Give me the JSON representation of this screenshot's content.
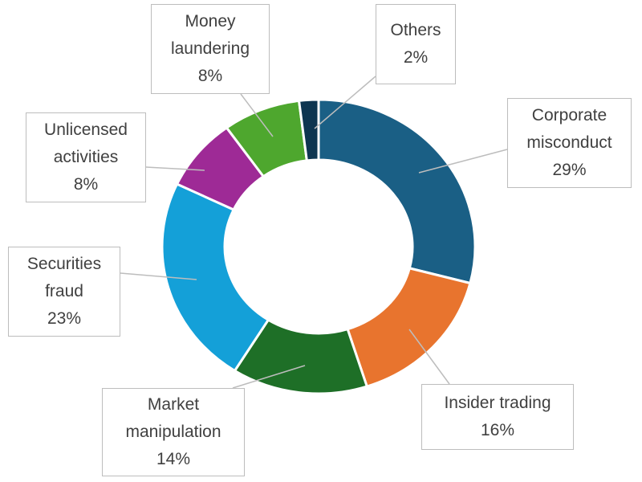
{
  "chart_data": {
    "type": "donut",
    "categories": [
      "Corporate misconduct",
      "Insider trading",
      "Market manipulation",
      "Securities fraud",
      "Unlicensed activities",
      "Money laundering",
      "Others"
    ],
    "values": [
      29,
      16,
      14,
      23,
      8,
      8,
      2
    ],
    "value_labels": [
      "29%",
      "16%",
      "14%",
      "23%",
      "8%",
      "8%",
      "2%"
    ],
    "colors": [
      "#1a5f85",
      "#e8742e",
      "#1e6f27",
      "#14a0d8",
      "#9e2a96",
      "#4ea72e",
      "#0d3550"
    ]
  }
}
